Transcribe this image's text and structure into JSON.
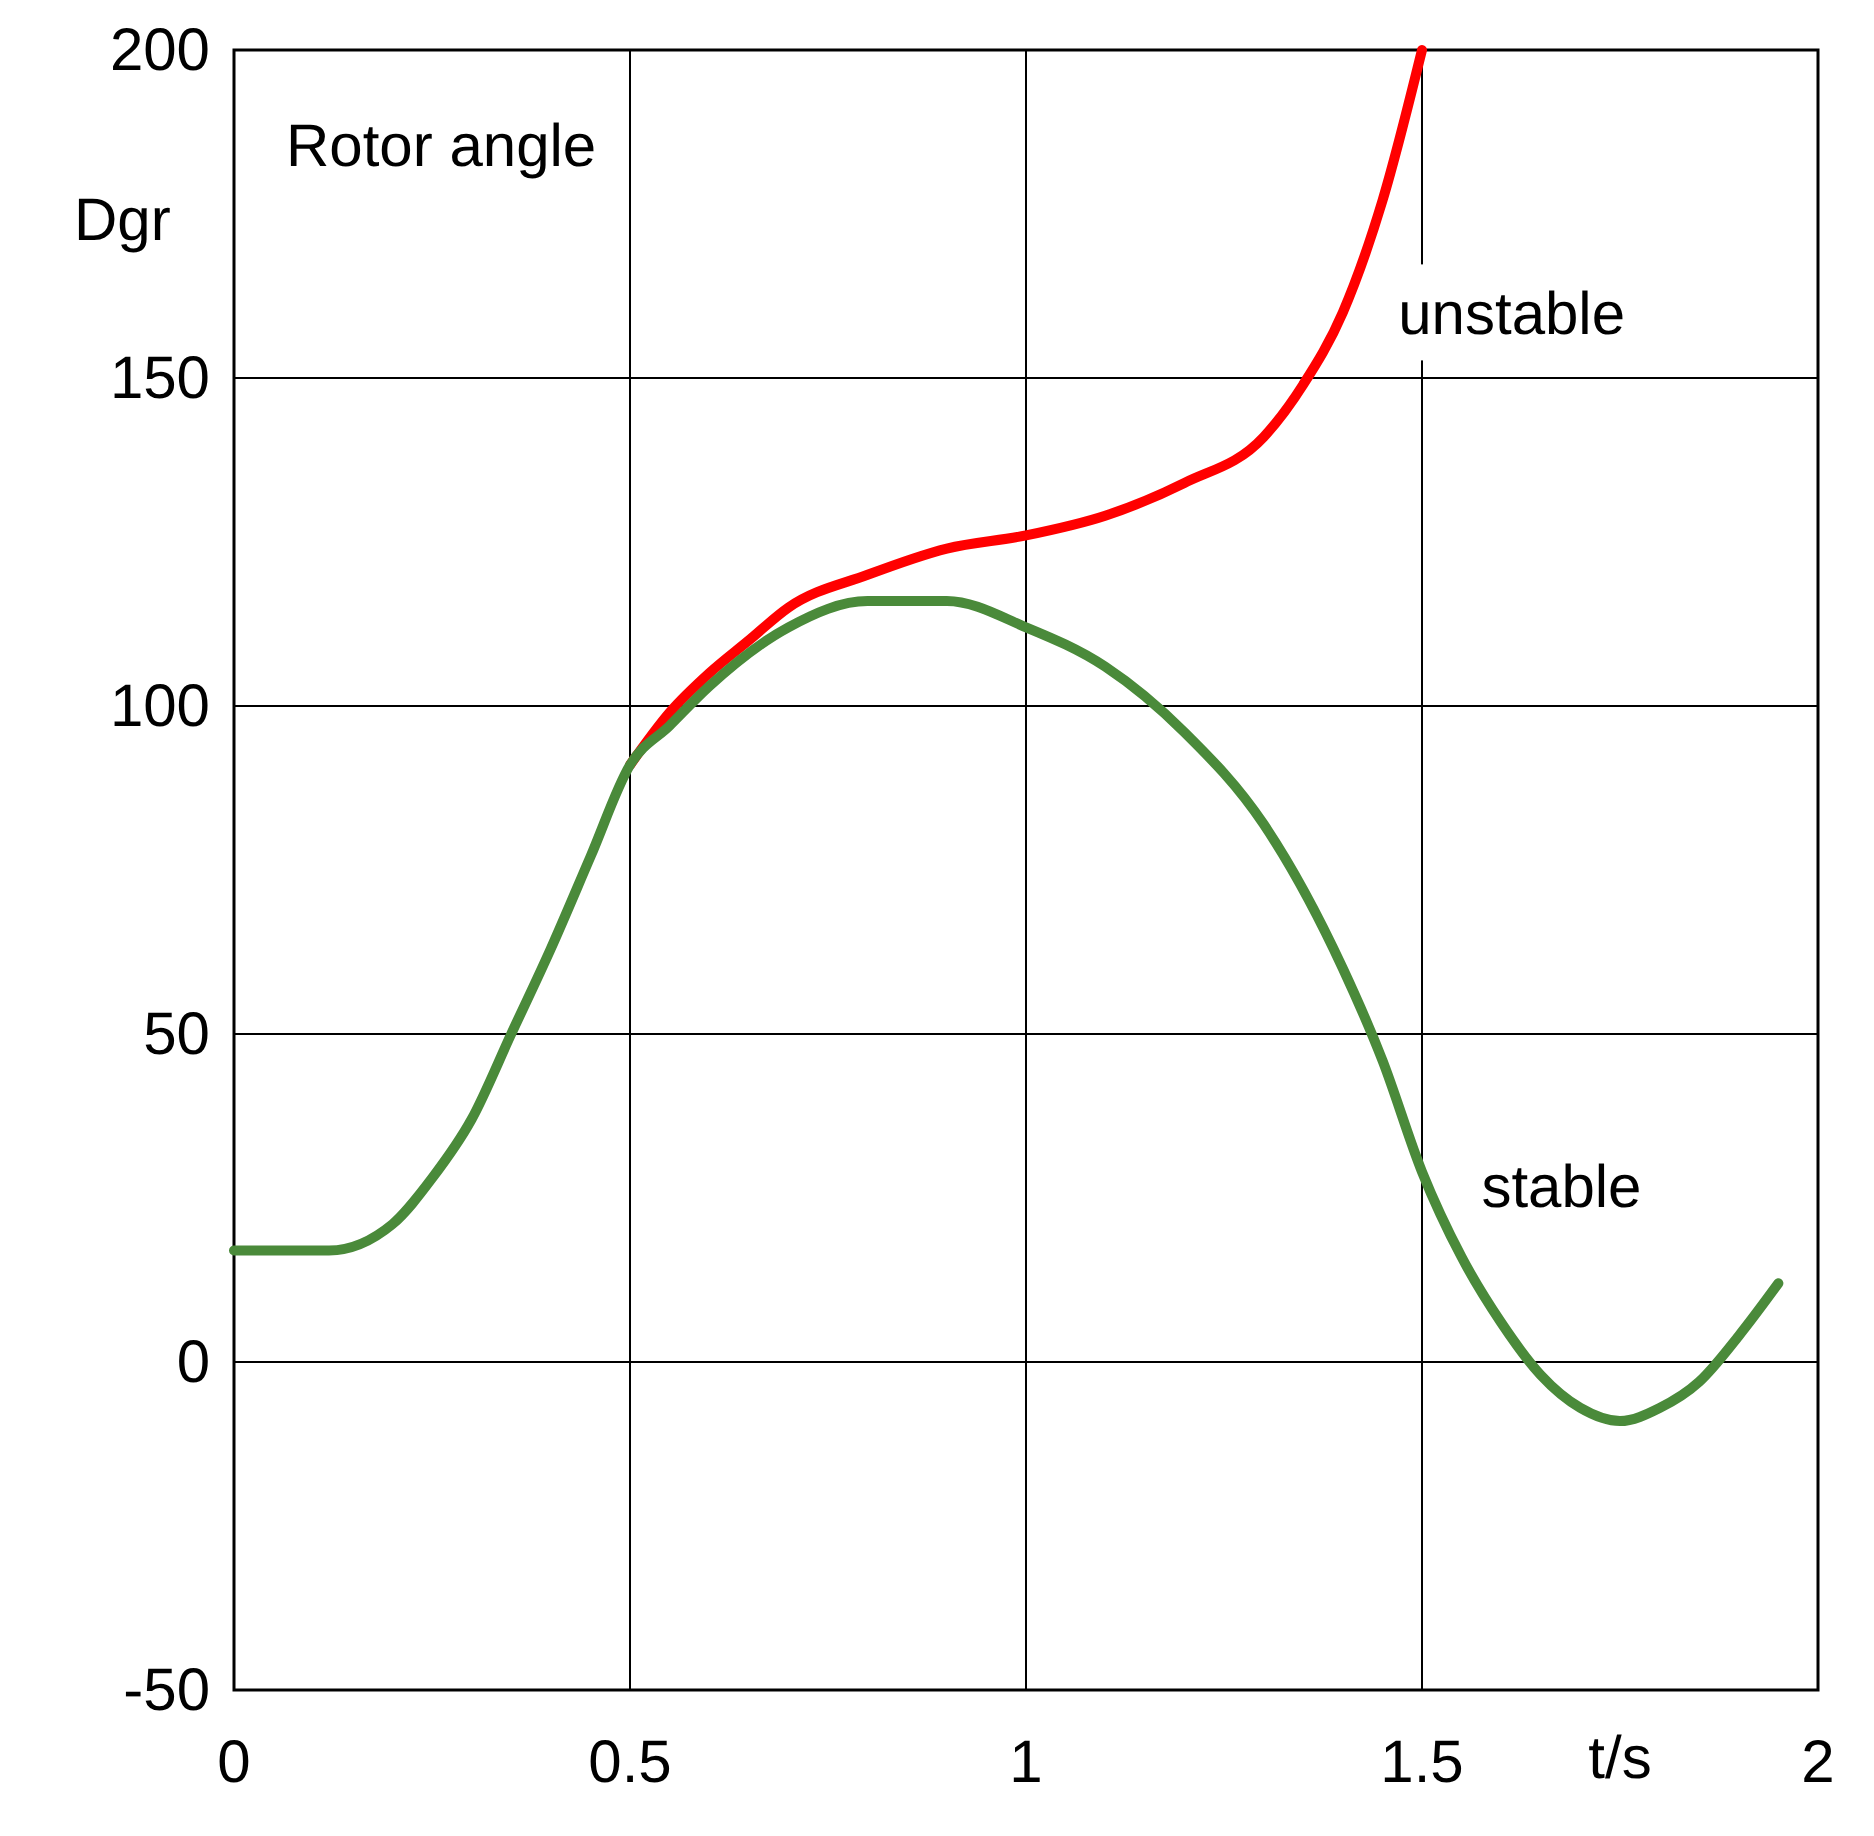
{
  "chart_data": {
    "type": "line",
    "title": "Rotor angle",
    "ylabel": "Dgr",
    "xlabel": "t/s",
    "xlim": [
      0,
      2
    ],
    "ylim": [
      -50,
      200
    ],
    "xticks": [
      0,
      0.5,
      1,
      1.5,
      2
    ],
    "yticks": [
      -50,
      0,
      50,
      100,
      150,
      200
    ],
    "grid": true,
    "marker": "none",
    "line_style": "solid",
    "series": [
      {
        "name": "unstable",
        "color": "#ff0000",
        "x": [
          0.5,
          0.55,
          0.6,
          0.65,
          0.7,
          0.8,
          0.9,
          1.0,
          1.1,
          1.2,
          1.3,
          1.35,
          1.4,
          1.45,
          1.5
        ],
        "values": [
          91,
          99,
          105,
          110,
          115,
          120,
          124,
          126,
          129,
          134,
          141,
          149,
          160,
          177,
          200
        ]
      },
      {
        "name": "stable",
        "color": "#4a8a3a",
        "x": [
          0,
          0.12,
          0.2,
          0.25,
          0.3,
          0.35,
          0.4,
          0.45,
          0.5,
          0.55,
          0.6,
          0.7,
          0.8,
          0.85,
          0.9,
          1.0,
          1.1,
          1.2,
          1.3,
          1.4,
          1.45,
          1.5,
          1.55,
          1.6,
          1.65,
          1.7,
          1.75,
          1.8,
          1.85,
          1.9,
          1.95
        ],
        "values": [
          17,
          17,
          21,
          28,
          37,
          50,
          63,
          77,
          91,
          97,
          103,
          112,
          116,
          116,
          116,
          112,
          106,
          96,
          82,
          60,
          46,
          29,
          16,
          6,
          -2,
          -7,
          -9,
          -7,
          -3,
          4,
          12
        ]
      }
    ]
  }
}
